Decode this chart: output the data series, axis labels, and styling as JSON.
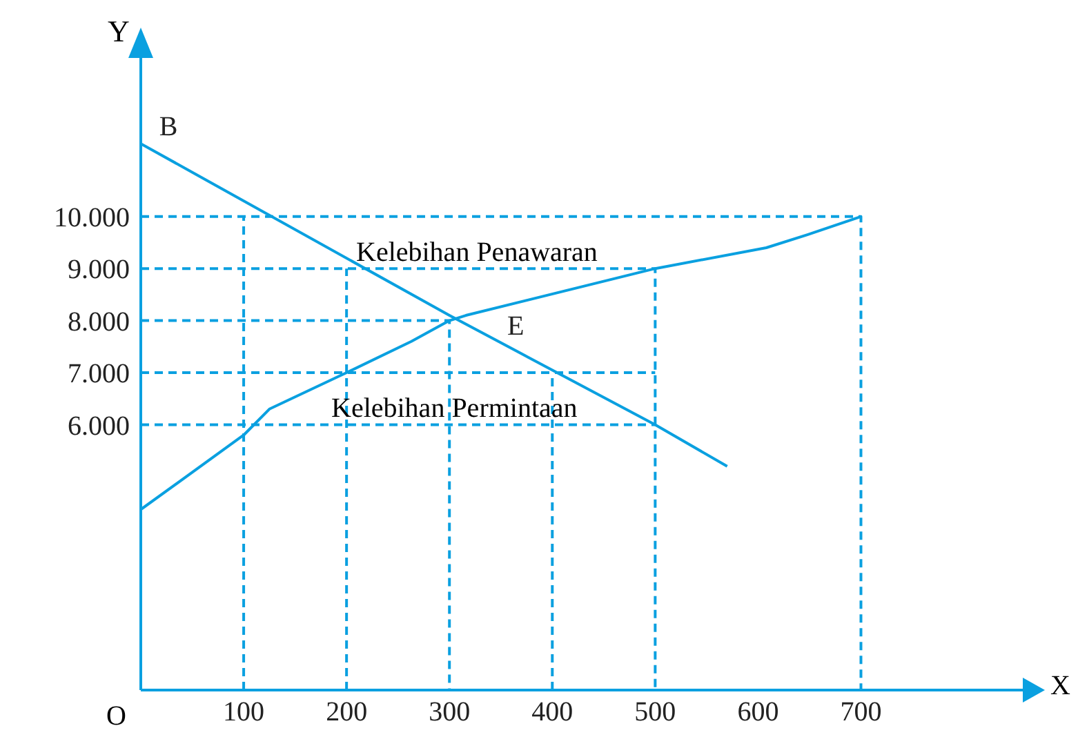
{
  "chart_data": {
    "type": "line",
    "xlabel": "X",
    "ylabel": "Y",
    "xlim": [
      0,
      860
    ],
    "ylim": [
      900,
      13100
    ],
    "xticks": [
      100,
      200,
      300,
      400,
      500,
      600,
      700
    ],
    "yticks": [
      {
        "value": 6000,
        "label": "6.000"
      },
      {
        "value": 7000,
        "label": "7.000"
      },
      {
        "value": 8000,
        "label": "8.000"
      },
      {
        "value": 9000,
        "label": "9.000"
      },
      {
        "value": 10000,
        "label": "10.000"
      }
    ],
    "grid": false,
    "marker": "none",
    "tick_labels": "xy",
    "series": [
      {
        "color": "#0aa0e0",
        "line_style": "solid",
        "x": [
          0,
          300,
          500,
          570
        ],
        "values": [
          11400,
          8100,
          6000,
          5200
        ]
      },
      {
        "color": "#0aa0e0",
        "line_style": "solid",
        "x": [
          0,
          100,
          125,
          200,
          263,
          300,
          316,
          500,
          608,
          648,
          700
        ],
        "values": [
          4370,
          5800,
          6300,
          7000,
          7600,
          8000,
          8100,
          9000,
          9400,
          9650,
          10000
        ]
      },
      {
        "type": "line",
        "color": "#0aa0e0",
        "line_style": "dashed",
        "x": [
          0,
          700,
          700
        ],
        "values": [
          10000,
          10000,
          900
        ]
      },
      {
        "type": "line",
        "color": "#0aa0e0",
        "line_style": "dashed",
        "x": [
          0,
          500,
          500
        ],
        "values": [
          9000,
          9000,
          900
        ]
      },
      {
        "type": "line",
        "color": "#0aa0e0",
        "line_style": "dashed",
        "x": [
          0,
          300,
          300
        ],
        "values": [
          8000,
          8000,
          900
        ]
      },
      {
        "type": "line",
        "color": "#0aa0e0",
        "line_style": "dashed",
        "x": [
          0,
          500
        ],
        "values": [
          7000,
          7000
        ]
      },
      {
        "type": "line",
        "color": "#0aa0e0",
        "line_style": "dashed",
        "x": [
          0,
          500
        ],
        "values": [
          6000,
          6000
        ]
      },
      {
        "type": "line",
        "color": "#0aa0e0",
        "line_style": "dashed",
        "x": [
          100,
          100
        ],
        "values": [
          900,
          10000
        ]
      },
      {
        "type": "line",
        "color": "#0aa0e0",
        "line_style": "dashed",
        "x": [
          200,
          200
        ],
        "values": [
          900,
          9000
        ]
      },
      {
        "type": "line",
        "color": "#0aa0e0",
        "line_style": "dashed",
        "x": [
          400,
          400
        ],
        "values": [
          900,
          7000
        ]
      }
    ],
    "annotations": [
      {
        "text": "B",
        "x": 0,
        "y": 11400
      },
      {
        "text": "E",
        "x": 300,
        "y": 8000
      },
      "Kelebihan Penawaran",
      "Kelebihan Permintaan",
      "O"
    ]
  }
}
